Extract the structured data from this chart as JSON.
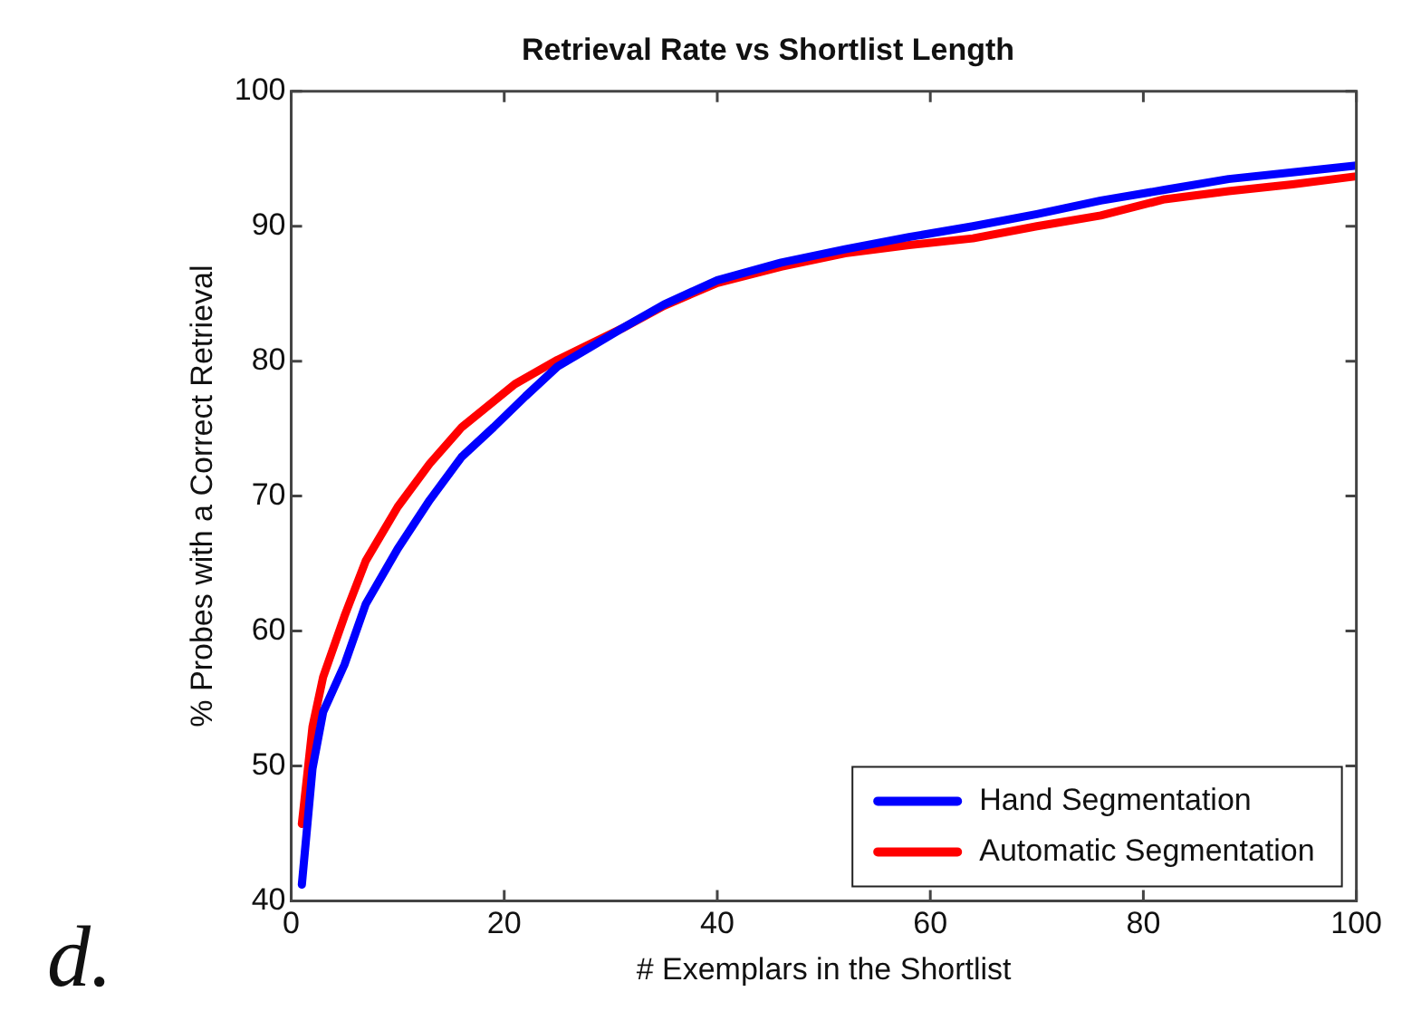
{
  "chart_data": {
    "type": "line",
    "title": "Retrieval Rate vs Shortlist Length",
    "xlabel": "# Exemplars in the Shortlist",
    "ylabel": "% Probes with a Correct Retrieval",
    "annotations": [
      "d."
    ],
    "xlim": [
      0,
      100
    ],
    "xticks": [
      0,
      20,
      40,
      60,
      80,
      100
    ],
    "ylim": [
      40,
      100
    ],
    "yticks": [
      40,
      50,
      60,
      70,
      80,
      90,
      100
    ],
    "grid": false,
    "legend": "bottom right",
    "marker": "none",
    "line_style": "solid",
    "series": [
      {
        "name": "Hand Segmentation",
        "color": "#0000ff",
        "x": [
          1,
          2,
          3,
          5,
          7,
          10,
          13,
          16,
          19,
          22,
          25,
          28,
          31,
          35,
          40,
          46,
          52,
          58,
          64,
          70,
          76,
          82,
          88,
          94,
          100
        ],
        "values": [
          41.2,
          49.8,
          54,
          57.5,
          62,
          66.1,
          69.7,
          72.9,
          75.1,
          77.4,
          79.6,
          81,
          82.4,
          84.2,
          86,
          87.3,
          88.3,
          89.2,
          90,
          90.9,
          91.9,
          92.7,
          93.5,
          94,
          94.5
        ]
      },
      {
        "name": "Automatic Segmentation",
        "color": "#ff0000",
        "x": [
          1,
          2,
          3,
          5,
          7,
          10,
          13,
          16,
          21,
          25,
          31,
          35,
          40,
          46,
          52,
          58,
          64,
          70,
          76,
          82,
          88,
          94,
          100
        ],
        "values": [
          45.7,
          52.9,
          56.6,
          61.1,
          65.2,
          69.2,
          72.4,
          75.1,
          78.3,
          80.1,
          82.4,
          84.1,
          85.8,
          87,
          88,
          88.6,
          89.1,
          90,
          90.8,
          92,
          92.6,
          93.1,
          93.7
        ]
      }
    ]
  }
}
